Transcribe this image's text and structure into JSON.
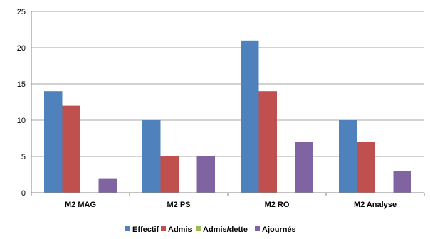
{
  "chart_data": {
    "type": "bar",
    "title": "",
    "xlabel": "",
    "ylabel": "",
    "categories": [
      "M2 MAG",
      "M2 PS",
      "M2 RO",
      "M2 Analyse"
    ],
    "series": [
      {
        "name": "Effectif",
        "color": "#4F81BD",
        "values": [
          14,
          10,
          21,
          10
        ]
      },
      {
        "name": "Admis",
        "color": "#C0504D",
        "values": [
          12,
          5,
          14,
          7
        ]
      },
      {
        "name": "Admis/dette",
        "color": "#9BBB59",
        "values": [
          0,
          0,
          0,
          0
        ]
      },
      {
        "name": "Ajournés",
        "color": "#8064A2",
        "values": [
          2,
          5,
          7,
          3
        ]
      }
    ],
    "ylim": [
      0,
      25
    ],
    "yticks": [
      0,
      5,
      10,
      15,
      20,
      25
    ],
    "grid": true,
    "legend": "bottom"
  }
}
